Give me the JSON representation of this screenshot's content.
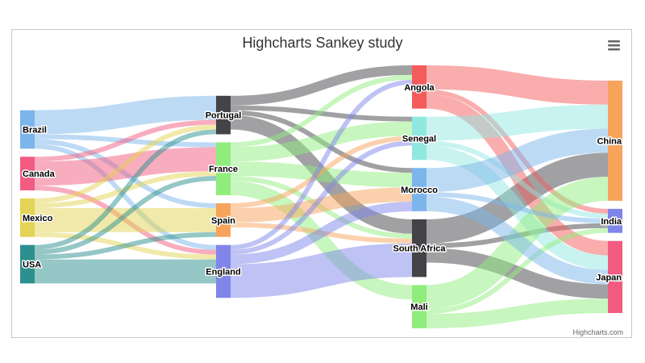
{
  "chart_data": {
    "type": "sankey",
    "title": "Highcharts Sankey study",
    "credits": "Highcharts.com",
    "menu_icon": "hamburger-menu-icon",
    "columns": [
      [
        "Brazil",
        "Canada",
        "Mexico",
        "USA"
      ],
      [
        "Portugal",
        "France",
        "Spain",
        "England"
      ],
      [
        "Angola",
        "Senegal",
        "Morocco",
        "South Africa",
        "Mali"
      ],
      [
        "China",
        "India",
        "Japan"
      ]
    ],
    "node_colors": {
      "Brazil": "#7cb5ec",
      "Canada": "#f15c80",
      "Mexico": "#e4d354",
      "USA": "#2b908f",
      "Portugal": "#434348",
      "France": "#90ed7d",
      "Spain": "#f7a35c",
      "England": "#8085e9",
      "Angola": "#f45b5b",
      "Senegal": "#91e8e1",
      "Morocco": "#7cb5ec",
      "South Africa": "#434348",
      "Mali": "#90ed7d",
      "China": "#f7a35c",
      "India": "#8085e9",
      "Japan": "#f15c80"
    },
    "links": [
      [
        "Brazil",
        "Portugal",
        5
      ],
      [
        "Brazil",
        "France",
        1
      ],
      [
        "Brazil",
        "Spain",
        1
      ],
      [
        "Brazil",
        "England",
        1
      ],
      [
        "Canada",
        "Portugal",
        1
      ],
      [
        "Canada",
        "France",
        5
      ],
      [
        "Canada",
        "England",
        1
      ],
      [
        "Mexico",
        "Portugal",
        1
      ],
      [
        "Mexico",
        "France",
        1
      ],
      [
        "Mexico",
        "Spain",
        5
      ],
      [
        "Mexico",
        "England",
        1
      ],
      [
        "USA",
        "Portugal",
        1
      ],
      [
        "USA",
        "France",
        1
      ],
      [
        "USA",
        "Spain",
        1
      ],
      [
        "USA",
        "England",
        5
      ],
      [
        "Portugal",
        "Angola",
        2
      ],
      [
        "Portugal",
        "Senegal",
        1
      ],
      [
        "Portugal",
        "Morocco",
        1
      ],
      [
        "Portugal",
        "South Africa",
        3
      ],
      [
        "France",
        "Angola",
        1
      ],
      [
        "France",
        "Senegal",
        3
      ],
      [
        "France",
        "Mali",
        3
      ],
      [
        "France",
        "Morocco",
        3
      ],
      [
        "France",
        "South Africa",
        1
      ],
      [
        "Spain",
        "Senegal",
        1
      ],
      [
        "Spain",
        "Morocco",
        3
      ],
      [
        "Spain",
        "South Africa",
        1
      ],
      [
        "England",
        "Angola",
        1
      ],
      [
        "England",
        "Senegal",
        1
      ],
      [
        "England",
        "Morocco",
        2
      ],
      [
        "England",
        "South Africa",
        7
      ],
      [
        "South Africa",
        "China",
        5
      ],
      [
        "South Africa",
        "India",
        1
      ],
      [
        "South Africa",
        "Japan",
        3
      ],
      [
        "Angola",
        "China",
        5
      ],
      [
        "Angola",
        "India",
        1
      ],
      [
        "Angola",
        "Japan",
        3
      ],
      [
        "Senegal",
        "China",
        5
      ],
      [
        "Senegal",
        "India",
        1
      ],
      [
        "Senegal",
        "Japan",
        3
      ],
      [
        "Mali",
        "China",
        5
      ],
      [
        "Mali",
        "India",
        1
      ],
      [
        "Mali",
        "Japan",
        3
      ],
      [
        "Morocco",
        "China",
        5
      ],
      [
        "Morocco",
        "India",
        1
      ],
      [
        "Morocco",
        "Japan",
        3
      ]
    ]
  }
}
